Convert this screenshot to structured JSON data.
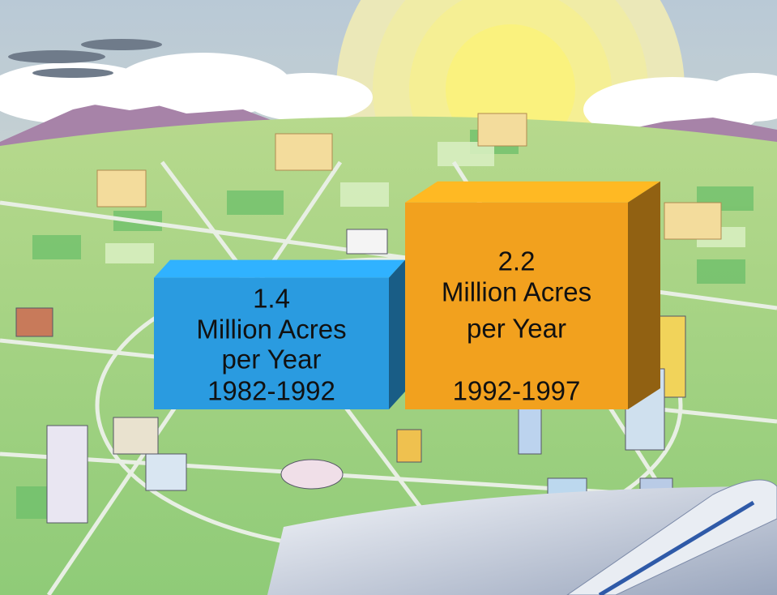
{
  "chart_data": {
    "type": "bar",
    "categories": [
      "1982-1992",
      "1992-1997"
    ],
    "values": [
      1.4,
      2.2
    ],
    "unit": "Million Acres per Year",
    "series_colors": [
      "#2a9be0",
      "#f2a11e"
    ]
  }
}
